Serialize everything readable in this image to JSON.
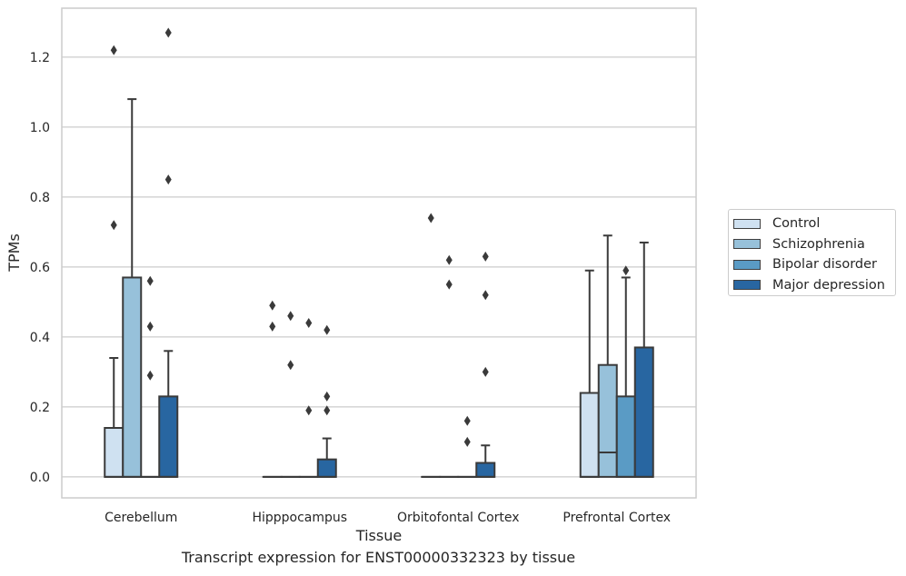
{
  "chart_data": {
    "type": "box",
    "caption": "Transcript expression for ENST00000332323 by tissue",
    "xlabel": "Tissue",
    "ylabel": "TPMs",
    "ylim": [
      -0.06,
      1.34
    ],
    "yticks": [
      0.0,
      0.2,
      0.4,
      0.6,
      0.8,
      1.0,
      1.2
    ],
    "ytick_labels": [
      "0.0",
      "0.2",
      "0.4",
      "0.6",
      "0.8",
      "1.0",
      "1.2"
    ],
    "grid": "horizontal",
    "legend_position": "right",
    "categories": [
      "Cerebellum",
      "Hipppocampus",
      "Orbitofontal Cortex",
      "Prefrontal Cortex"
    ],
    "series": [
      {
        "name": "Control",
        "color": "#cfe1f1",
        "boxes": [
          {
            "q1": 0.0,
            "median": 0.0,
            "q3": 0.14,
            "whisker_low": 0.0,
            "whisker_high": 0.34,
            "outliers": [
              0.72,
              1.22
            ]
          },
          {
            "q1": 0.0,
            "median": 0.0,
            "q3": 0.0,
            "whisker_low": 0.0,
            "whisker_high": 0.0,
            "outliers": [
              0.43,
              0.49
            ]
          },
          {
            "q1": 0.0,
            "median": 0.0,
            "q3": 0.0,
            "whisker_low": 0.0,
            "whisker_high": 0.0,
            "outliers": [
              0.74
            ]
          },
          {
            "q1": 0.0,
            "median": 0.0,
            "q3": 0.24,
            "whisker_low": 0.0,
            "whisker_high": 0.59,
            "outliers": []
          }
        ]
      },
      {
        "name": "Schizophrenia",
        "color": "#97c1da",
        "boxes": [
          {
            "q1": 0.0,
            "median": 0.0,
            "q3": 0.57,
            "whisker_low": 0.0,
            "whisker_high": 1.08,
            "outliers": []
          },
          {
            "q1": 0.0,
            "median": 0.0,
            "q3": 0.0,
            "whisker_low": 0.0,
            "whisker_high": 0.0,
            "outliers": [
              0.32,
              0.46
            ]
          },
          {
            "q1": 0.0,
            "median": 0.0,
            "q3": 0.0,
            "whisker_low": 0.0,
            "whisker_high": 0.0,
            "outliers": [
              0.55,
              0.62
            ]
          },
          {
            "q1": 0.0,
            "median": 0.07,
            "q3": 0.32,
            "whisker_low": 0.0,
            "whisker_high": 0.69,
            "outliers": []
          }
        ]
      },
      {
        "name": "Bipolar disorder",
        "color": "#5a9bc5",
        "boxes": [
          {
            "q1": 0.0,
            "median": 0.0,
            "q3": 0.0,
            "whisker_low": 0.0,
            "whisker_high": 0.0,
            "outliers": [
              0.29,
              0.43,
              0.56
            ]
          },
          {
            "q1": 0.0,
            "median": 0.0,
            "q3": 0.0,
            "whisker_low": 0.0,
            "whisker_high": 0.0,
            "outliers": [
              0.19,
              0.44
            ]
          },
          {
            "q1": 0.0,
            "median": 0.0,
            "q3": 0.0,
            "whisker_low": 0.0,
            "whisker_high": 0.0,
            "outliers": [
              0.1,
              0.16
            ]
          },
          {
            "q1": 0.0,
            "median": 0.0,
            "q3": 0.23,
            "whisker_low": 0.0,
            "whisker_high": 0.57,
            "outliers": [
              0.59
            ]
          }
        ]
      },
      {
        "name": "Major depression",
        "color": "#2866a1",
        "boxes": [
          {
            "q1": 0.0,
            "median": 0.0,
            "q3": 0.23,
            "whisker_low": 0.0,
            "whisker_high": 0.36,
            "outliers": [
              0.85,
              1.27
            ]
          },
          {
            "q1": 0.0,
            "median": 0.0,
            "q3": 0.05,
            "whisker_low": 0.0,
            "whisker_high": 0.11,
            "outliers": [
              0.19,
              0.23,
              0.42
            ]
          },
          {
            "q1": 0.0,
            "median": 0.0,
            "q3": 0.04,
            "whisker_low": 0.0,
            "whisker_high": 0.09,
            "outliers": [
              0.3,
              0.52,
              0.63
            ]
          },
          {
            "q1": 0.0,
            "median": 0.0,
            "q3": 0.37,
            "whisker_low": 0.0,
            "whisker_high": 0.67,
            "outliers": []
          }
        ]
      }
    ]
  }
}
